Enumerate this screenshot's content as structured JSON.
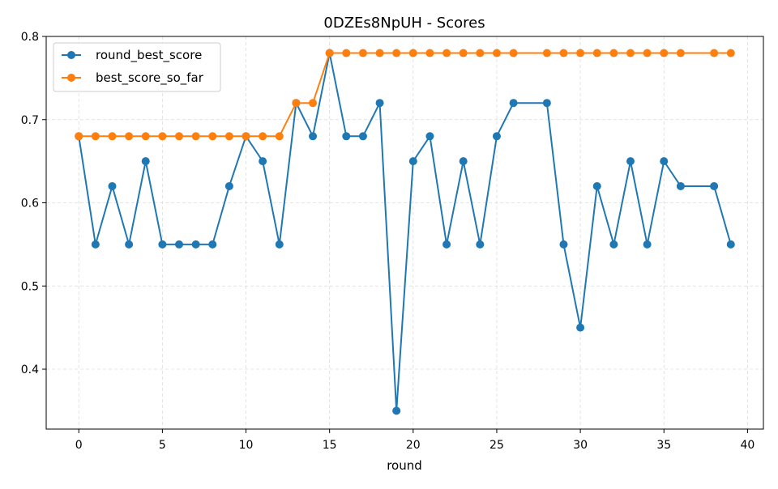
{
  "chart_data": {
    "type": "line",
    "title": "0DZEs8NpUH - Scores",
    "xlabel": "round",
    "ylabel": "",
    "xlim": [
      -1.95,
      40.95
    ],
    "ylim": [
      0.328,
      0.8
    ],
    "xticks": [
      0,
      5,
      10,
      15,
      20,
      25,
      30,
      35,
      40
    ],
    "xtick_labels": [
      "0",
      "5",
      "10",
      "15",
      "20",
      "25",
      "30",
      "35",
      "40"
    ],
    "yticks": [
      0.4,
      0.5,
      0.6,
      0.7,
      0.8
    ],
    "ytick_labels": [
      "0.4",
      "0.5",
      "0.6",
      "0.7",
      "0.8"
    ],
    "grid": true,
    "legend_position": "top-left",
    "series": [
      {
        "name": "round_best_score",
        "color": "#1f77b4",
        "x": [
          0,
          1,
          2,
          3,
          4,
          5,
          6,
          7,
          8,
          9,
          10,
          11,
          12,
          13,
          14,
          15,
          16,
          17,
          18,
          19,
          20,
          21,
          22,
          23,
          24,
          25,
          26,
          28,
          29,
          30,
          31,
          32,
          33,
          34,
          35,
          36,
          38,
          39
        ],
        "y": [
          0.68,
          0.55,
          0.62,
          0.55,
          0.65,
          0.55,
          0.55,
          0.55,
          0.55,
          0.62,
          0.68,
          0.65,
          0.55,
          0.72,
          0.68,
          0.78,
          0.68,
          0.68,
          0.72,
          0.35,
          0.65,
          0.68,
          0.55,
          0.65,
          0.55,
          0.68,
          0.72,
          0.72,
          0.55,
          0.45,
          0.62,
          0.55,
          0.65,
          0.55,
          0.65,
          0.62,
          0.62,
          0.55
        ]
      },
      {
        "name": "best_score_so_far",
        "color": "#ff7f0e",
        "x": [
          0,
          1,
          2,
          3,
          4,
          5,
          6,
          7,
          8,
          9,
          10,
          11,
          12,
          13,
          14,
          15,
          16,
          17,
          18,
          19,
          20,
          21,
          22,
          23,
          24,
          25,
          26,
          28,
          29,
          30,
          31,
          32,
          33,
          34,
          35,
          36,
          38,
          39
        ],
        "y": [
          0.68,
          0.68,
          0.68,
          0.68,
          0.68,
          0.68,
          0.68,
          0.68,
          0.68,
          0.68,
          0.68,
          0.68,
          0.68,
          0.72,
          0.72,
          0.78,
          0.78,
          0.78,
          0.78,
          0.78,
          0.78,
          0.78,
          0.78,
          0.78,
          0.78,
          0.78,
          0.78,
          0.78,
          0.78,
          0.78,
          0.78,
          0.78,
          0.78,
          0.78,
          0.78,
          0.78,
          0.78,
          0.78
        ]
      }
    ]
  }
}
